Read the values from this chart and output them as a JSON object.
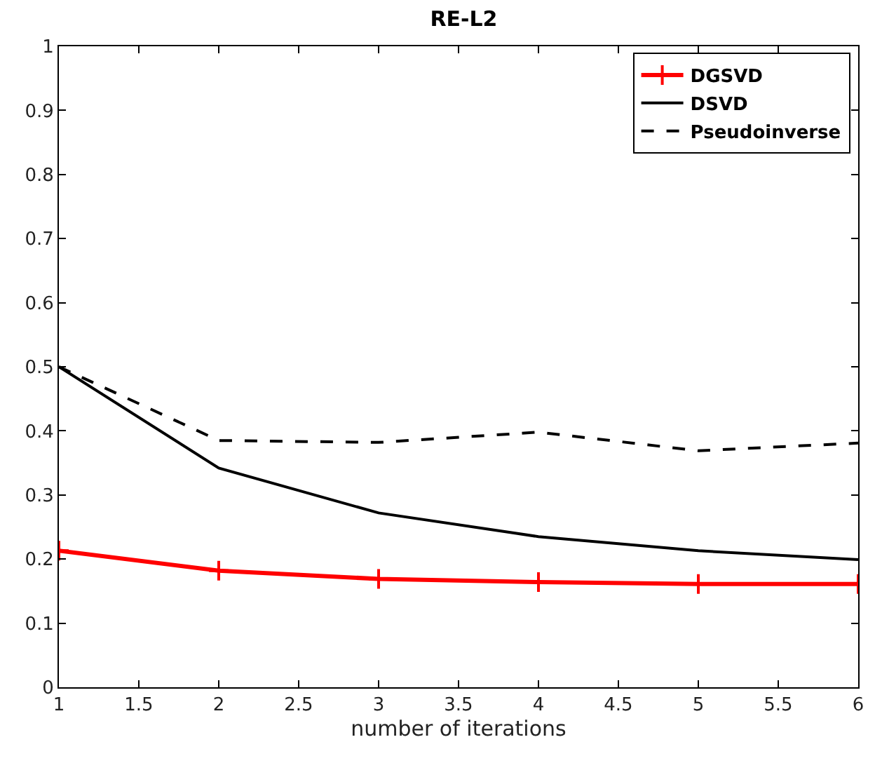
{
  "chart_data": {
    "type": "line",
    "title": "RE-L2",
    "xlabel": "number of iterations",
    "x": [
      1,
      2,
      3,
      4,
      5,
      6
    ],
    "series": [
      {
        "name": "DGSVD",
        "color": "#ff0000",
        "values": [
          0.213,
          0.182,
          0.169,
          0.164,
          0.161,
          0.161
        ],
        "marker": "cross",
        "line_style": "solid"
      },
      {
        "name": "DSVD",
        "color": "#000000",
        "values": [
          0.5,
          0.342,
          0.272,
          0.235,
          0.213,
          0.199
        ],
        "marker": "none",
        "line_style": "solid"
      },
      {
        "name": "Pseudoinverse",
        "color": "#000000",
        "values": [
          0.5,
          0.385,
          0.382,
          0.398,
          0.369,
          0.381
        ],
        "marker": "none",
        "line_style": "dashed"
      }
    ],
    "xlim": [
      1,
      6
    ],
    "xticks": [
      1,
      1.5,
      2,
      2.5,
      3,
      3.5,
      4,
      4.5,
      5,
      5.5,
      6
    ],
    "ylim": [
      0,
      1
    ],
    "yticks": [
      0,
      0.1,
      0.2,
      0.3,
      0.4,
      0.5,
      0.6,
      0.7,
      0.8,
      0.9,
      1
    ],
    "grid": false,
    "legend": "top right"
  }
}
